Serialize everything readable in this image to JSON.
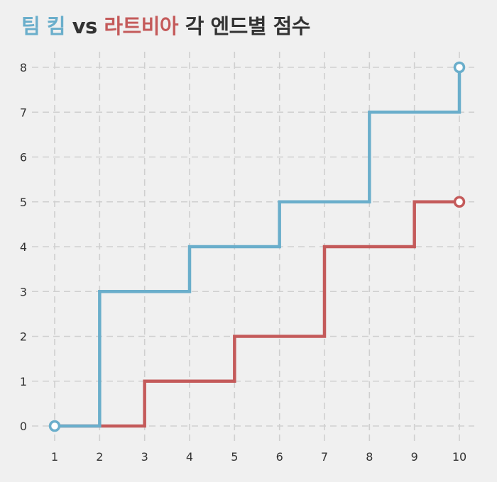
{
  "title": {
    "team_a": "팀 킴",
    "vs": "vs",
    "team_b": "라트비아",
    "suffix": "각 엔드별 점수"
  },
  "colors": {
    "team_a": "#6aaecb",
    "team_b": "#c45a5a",
    "background": "#f0f0f0",
    "grid": "#cfcfcf",
    "text": "#333333"
  },
  "chart_data": {
    "type": "line",
    "step": "post",
    "title": "팀 킴 vs 라트비아 각 엔드별 점수",
    "xlabel": "",
    "ylabel": "",
    "x": [
      1,
      2,
      3,
      4,
      5,
      6,
      7,
      8,
      9,
      10
    ],
    "xlim": [
      1,
      10
    ],
    "ylim": [
      0,
      8
    ],
    "xticks": [
      "1",
      "2",
      "3",
      "4",
      "5",
      "6",
      "7",
      "8",
      "9",
      "10"
    ],
    "yticks": [
      "0",
      "1",
      "2",
      "3",
      "4",
      "5",
      "6",
      "7",
      "8"
    ],
    "grid": true,
    "series": [
      {
        "name": "팀 킴",
        "color": "#6aaecb",
        "values": [
          0,
          3,
          3,
          4,
          4,
          5,
          5,
          7,
          7,
          8
        ]
      },
      {
        "name": "라트비아",
        "color": "#c45a5a",
        "values": [
          0,
          0,
          1,
          1,
          2,
          2,
          4,
          4,
          5,
          5
        ]
      }
    ]
  }
}
